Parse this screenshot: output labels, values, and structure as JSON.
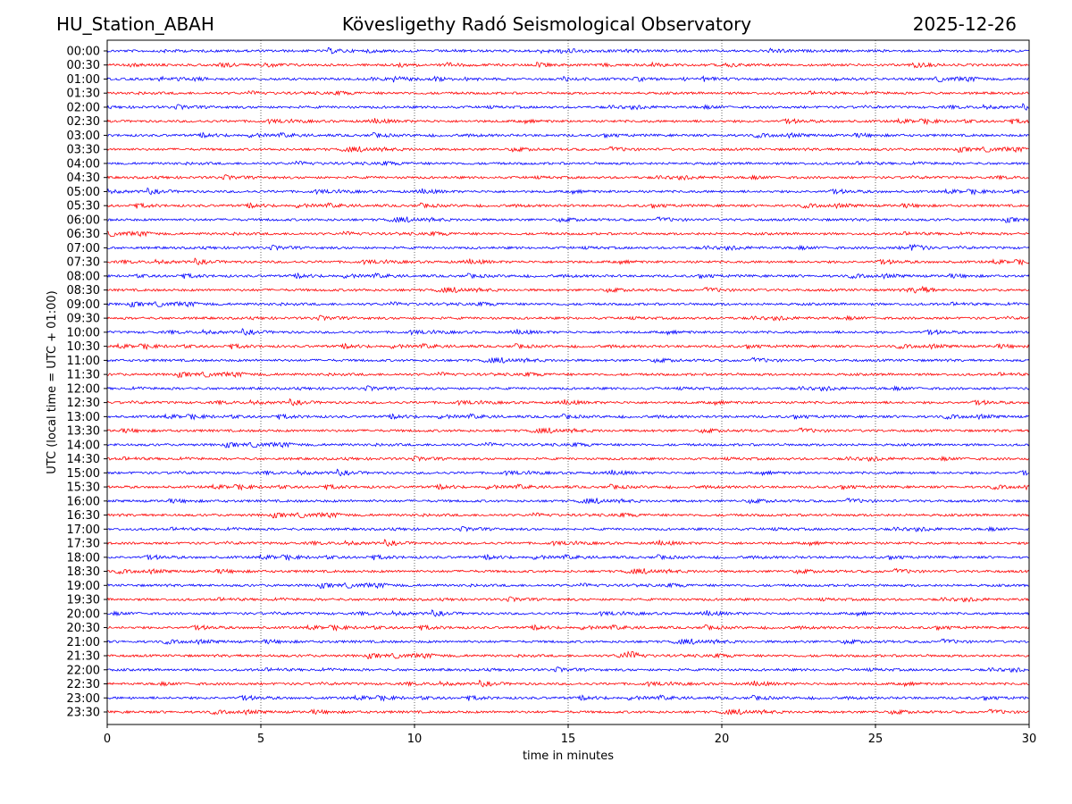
{
  "header": {
    "station": "HU_Station_ABAH",
    "observatory": "Kövesligethy Radó Seismological Observatory",
    "date": "2025-12-26"
  },
  "chart_data": {
    "type": "line",
    "title": "Kövesligethy Radó Seismological Observatory",
    "xlabel": "time in minutes",
    "ylabel": "UTC (local time = UTC + 01:00)",
    "xlim": [
      0,
      30
    ],
    "x_ticks": [
      "0",
      "5",
      "10",
      "15",
      "20",
      "25",
      "30"
    ],
    "grid": "vertical dotted at 5-minute ticks",
    "row_colors": [
      "#0000ff",
      "#ff0000"
    ],
    "rows": [
      "00:00",
      "00:30",
      "01:00",
      "01:30",
      "02:00",
      "02:30",
      "03:00",
      "03:30",
      "04:00",
      "04:30",
      "05:00",
      "05:30",
      "06:00",
      "06:30",
      "07:00",
      "07:30",
      "08:00",
      "08:30",
      "09:00",
      "09:30",
      "10:00",
      "10:30",
      "11:00",
      "11:30",
      "12:00",
      "12:30",
      "13:00",
      "13:30",
      "14:00",
      "14:30",
      "15:00",
      "15:30",
      "16:00",
      "16:30",
      "17:00",
      "17:30",
      "18:00",
      "18:30",
      "19:00",
      "19:30",
      "20:00",
      "20:30",
      "21:00",
      "21:30",
      "22:00",
      "22:30",
      "23:00",
      "23:30"
    ],
    "notable_bursts": [
      {
        "row": "07:00",
        "minute": 26.3
      },
      {
        "row": "08:30",
        "minute": 26.5
      },
      {
        "row": "21:30",
        "minute": 17.0
      }
    ]
  }
}
